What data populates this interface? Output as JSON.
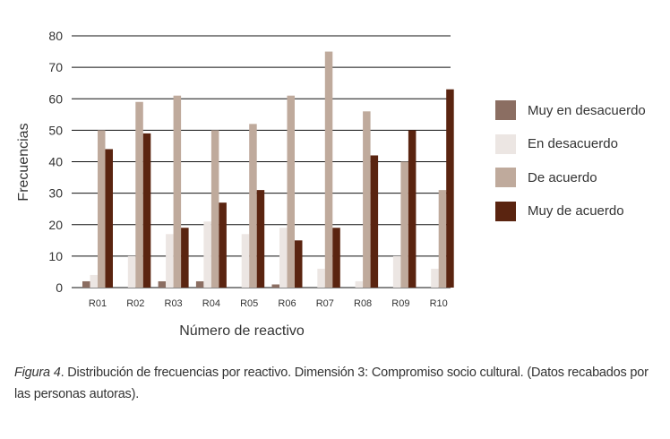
{
  "chart_data": {
    "type": "bar",
    "xlabel": "Número de reactivo",
    "ylabel": "Frecuencias",
    "ylim": [
      0,
      80
    ],
    "yticks": [
      0,
      10,
      20,
      30,
      40,
      50,
      60,
      70,
      80
    ],
    "grid": true,
    "legend_position": "right",
    "categories": [
      "R01",
      "R02",
      "R03",
      "R04",
      "R05",
      "R06",
      "R07",
      "R08",
      "R09",
      "R10"
    ],
    "series": [
      {
        "name": "Muy en desacuerdo",
        "color": "#8b6e62",
        "values": [
          2,
          0,
          2,
          2,
          0,
          1,
          0,
          0,
          0,
          0
        ]
      },
      {
        "name": "En desacuerdo",
        "color": "#ece6e3",
        "values": [
          4,
          10,
          17,
          21,
          17,
          19,
          6,
          2,
          10,
          6
        ]
      },
      {
        "name": "De acuerdo",
        "color": "#bfaa9c",
        "values": [
          50,
          59,
          61,
          50,
          52,
          61,
          75,
          56,
          40,
          31
        ]
      },
      {
        "name": "Muy de acuerdo",
        "color": "#5a2410",
        "values": [
          44,
          49,
          19,
          27,
          31,
          15,
          19,
          42,
          50,
          63
        ]
      }
    ]
  },
  "caption": {
    "figure_label": "Figura 4",
    "text": ". Distribución de frecuencias por reactivo. Dimensión 3: Compromiso socio cultural. (Datos recabados por las personas autoras)."
  }
}
